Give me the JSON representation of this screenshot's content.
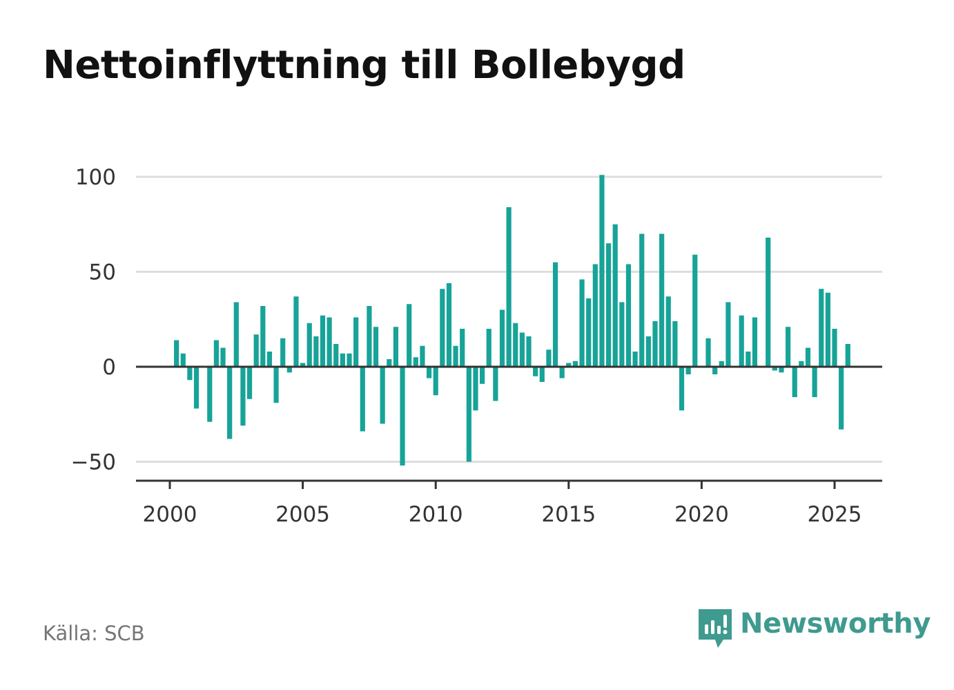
{
  "title": "Nettoinflyttning till Bollebygd",
  "source": "Källa: SCB",
  "brand": "Newsworthy",
  "colors": {
    "bar": "#17a398",
    "grid": "#dddddd",
    "zero": "#333333",
    "brand": "#3f9a8f"
  },
  "chart_data": {
    "type": "bar",
    "title": "Nettoinflyttning till Bollebygd",
    "xlabel": "",
    "ylabel": "",
    "ylim": [
      -60,
      100
    ],
    "xlim": [
      1999.7,
      2027.6
    ],
    "yticks": [
      100,
      50,
      0,
      -50
    ],
    "ytick_labels": [
      "100",
      "50",
      "0",
      "−50"
    ],
    "xticks": [
      2000,
      2005,
      2010,
      2015,
      2020,
      2025
    ],
    "xtick_labels": [
      "2000",
      "2005",
      "2010",
      "2015",
      "2020",
      "2025"
    ],
    "grid": true,
    "x": [
      2000.25,
      2000.5,
      2000.75,
      2001.0,
      2001.25,
      2001.5,
      2001.75,
      2002.0,
      2002.25,
      2002.5,
      2002.75,
      2003.0,
      2003.25,
      2003.5,
      2003.75,
      2004.0,
      2004.25,
      2004.5,
      2004.75,
      2005.0,
      2005.25,
      2005.5,
      2005.75,
      2006.0,
      2006.25,
      2006.5,
      2006.75,
      2007.0,
      2007.25,
      2007.5,
      2007.75,
      2008.0,
      2008.25,
      2008.5,
      2008.75,
      2009.0,
      2009.25,
      2009.5,
      2009.75,
      2010.0,
      2010.25,
      2010.5,
      2010.75,
      2011.0,
      2011.25,
      2011.5,
      2011.75,
      2012.0,
      2012.25,
      2012.5,
      2012.75,
      2013.0,
      2013.25,
      2013.5,
      2013.75,
      2014.0,
      2014.25,
      2014.5,
      2014.75,
      2015.0,
      2015.25,
      2015.5,
      2015.75,
      2016.0,
      2016.25,
      2016.5,
      2016.75,
      2017.0,
      2017.25,
      2017.5,
      2017.75,
      2018.0,
      2018.25,
      2018.5,
      2018.75,
      2019.0,
      2019.25,
      2019.5,
      2019.75,
      2020.0,
      2020.25,
      2020.5,
      2020.75,
      2021.0,
      2021.25,
      2021.5,
      2021.75,
      2022.0,
      2022.25,
      2022.5,
      2022.75,
      2023.0,
      2023.25,
      2023.5,
      2023.75,
      2024.0,
      2024.25,
      2024.5,
      2024.75,
      2025.0,
      2025.25,
      2025.5
    ],
    "values": [
      14,
      7,
      -7,
      -22,
      0,
      -29,
      14,
      10,
      -38,
      34,
      -31,
      -17,
      17,
      32,
      8,
      -19,
      15,
      -3,
      37,
      2,
      23,
      16,
      27,
      26,
      12,
      7,
      7,
      26,
      -34,
      32,
      21,
      -30,
      4,
      21,
      -52,
      33,
      5,
      11,
      -6,
      -15,
      41,
      44,
      11,
      20,
      -50,
      -23,
      -9,
      20,
      -18,
      30,
      84,
      23,
      18,
      16,
      -5,
      -8,
      9,
      55,
      -6,
      2,
      3,
      46,
      36,
      54,
      101,
      65,
      75,
      34,
      54,
      8,
      70,
      16,
      24,
      70,
      37,
      24,
      -23,
      -4,
      59,
      0,
      15,
      -4,
      3,
      34,
      0,
      27,
      8,
      26,
      0,
      68,
      -2,
      -3,
      21,
      -16,
      3,
      10,
      -16,
      41,
      39,
      20,
      -33,
      12
    ]
  }
}
